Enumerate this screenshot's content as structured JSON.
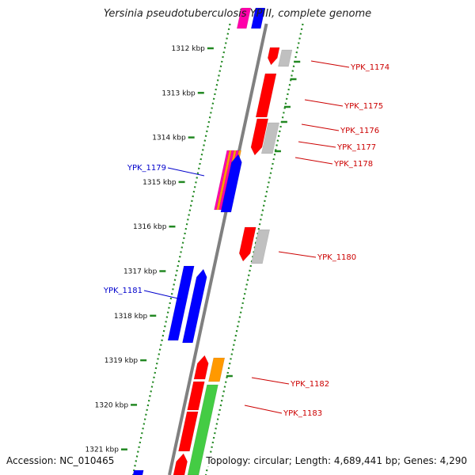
{
  "title": "Yersinia pseudotuberculosis YPIII, complete genome",
  "accession": "Accession: NC_010465",
  "summary": "Topology: circular; Length: 4,689,441 bp; Genes: 4,290",
  "colors": {
    "forward": "#ff0000",
    "reverse": "#0000ff",
    "backbone": "#808080",
    "pseudo": "#c0c0c0",
    "green": "#44cc44",
    "orange": "#ff9900",
    "magenta": "#ff00aa",
    "ticks": "#228822",
    "red_label": "#cc0000",
    "blue_label": "#0000cc"
  },
  "ticks": [
    "1312 kbp",
    "1313 kbp",
    "1314 kbp",
    "1315 kbp",
    "1316 kbp",
    "1317 kbp",
    "1318 kbp",
    "1319 kbp",
    "1320 kbp",
    "1321 kbp"
  ],
  "labels": [
    {
      "text": "YPK_1174",
      "side": "right"
    },
    {
      "text": "YPK_1175",
      "side": "right"
    },
    {
      "text": "YPK_1176",
      "side": "right"
    },
    {
      "text": "YPK_1177",
      "side": "right"
    },
    {
      "text": "YPK_1178",
      "side": "right"
    },
    {
      "text": "YPK_1179",
      "side": "left"
    },
    {
      "text": "YPK_1180",
      "side": "right"
    },
    {
      "text": "YPK_1181",
      "side": "left"
    },
    {
      "text": "YPK_1182",
      "side": "right"
    },
    {
      "text": "YPK_1183",
      "side": "right"
    }
  ]
}
